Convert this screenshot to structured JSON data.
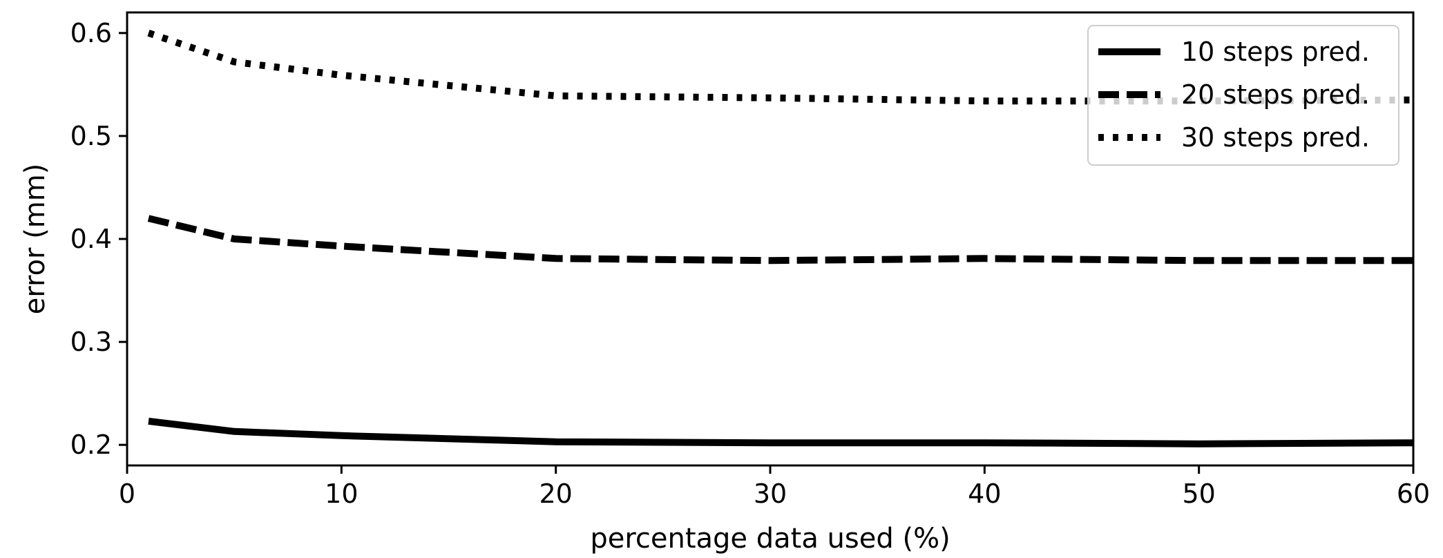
{
  "chart_data": {
    "type": "line",
    "xlabel": "percentage data used (%)",
    "ylabel": "error (mm)",
    "xlim": [
      0,
      60
    ],
    "ylim": [
      0.18,
      0.62
    ],
    "xticks": [
      0,
      10,
      20,
      30,
      40,
      50,
      60
    ],
    "xtick_labels": [
      "0",
      "10",
      "20",
      "30",
      "40",
      "50",
      "60"
    ],
    "yticks": [
      0.2,
      0.3,
      0.4,
      0.5,
      0.6
    ],
    "ytick_labels": [
      "0.2",
      "0.3",
      "0.4",
      "0.5",
      "0.6"
    ],
    "grid": false,
    "legend_position": "top-right",
    "x": [
      1,
      5,
      10,
      20,
      30,
      40,
      50,
      60
    ],
    "series": [
      {
        "name": "10 steps pred.",
        "style": "solid",
        "values": [
          0.223,
          0.213,
          0.209,
          0.203,
          0.202,
          0.202,
          0.201,
          0.202
        ]
      },
      {
        "name": "20 steps pred.",
        "style": "dashed",
        "values": [
          0.42,
          0.4,
          0.393,
          0.381,
          0.379,
          0.381,
          0.379,
          0.379
        ]
      },
      {
        "name": "30 steps pred.",
        "style": "dotted",
        "values": [
          0.6,
          0.572,
          0.559,
          0.539,
          0.537,
          0.534,
          0.534,
          0.535
        ]
      }
    ],
    "line_color": "#000000"
  }
}
